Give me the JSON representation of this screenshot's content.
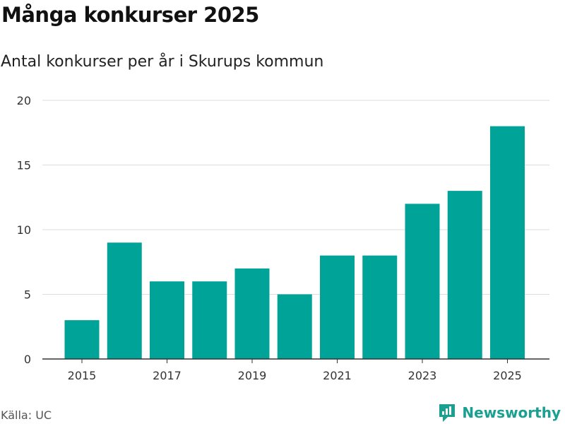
{
  "title": "Många konkurser 2025",
  "subtitle": "Antal konkurser per år i Skurups kommun",
  "source": "Källa: UC",
  "brand": {
    "name": "Newsworthy",
    "icon": "newsworthy-logo-icon"
  },
  "colors": {
    "bar": "#00A398",
    "grid": "#dddddd",
    "axis": "#333333",
    "brand": "#1aa090"
  },
  "chart_data": {
    "type": "bar",
    "categories": [
      "2015",
      "2016",
      "2017",
      "2018",
      "2019",
      "2020",
      "2021",
      "2022",
      "2023",
      "2024",
      "2025"
    ],
    "values": [
      3,
      9,
      6,
      6,
      7,
      5,
      8,
      8,
      12,
      13,
      18
    ],
    "xtick_labels": [
      "2015",
      "2017",
      "2019",
      "2021",
      "2023",
      "2025"
    ],
    "yticks": [
      0,
      5,
      10,
      15,
      20
    ],
    "ylim": [
      0,
      20
    ],
    "grid": true,
    "xlabel": "",
    "ylabel": ""
  }
}
